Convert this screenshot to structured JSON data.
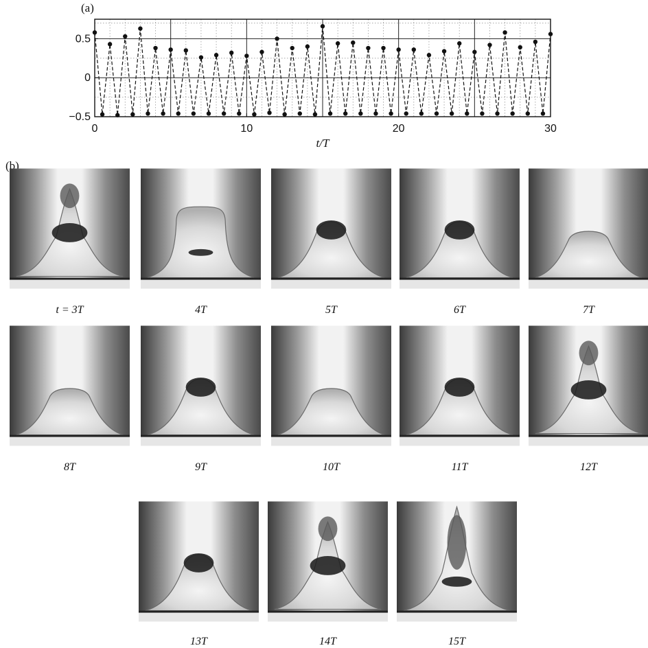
{
  "panel_a": {
    "label": "(a)",
    "chart_data": {
      "type": "line",
      "xlabel": "t/T",
      "ylabel": "",
      "xlim": [
        0,
        30
      ],
      "ylim": [
        -0.5,
        0.75
      ],
      "xticks": [
        0,
        10,
        20,
        30
      ],
      "xtick_labels": [
        "0",
        "10",
        "20",
        "30"
      ],
      "yticks": [
        -0.5,
        0,
        0.5
      ],
      "ytick_labels": [
        "−0.5",
        "0",
        "0.5"
      ],
      "grid": true,
      "line_style": "dashed",
      "marker": "filled-circle",
      "series": [
        {
          "x": [
            0,
            0.5,
            1,
            1.5,
            2,
            2.5,
            3,
            3.5,
            4,
            4.5,
            5,
            5.5,
            6,
            6.5,
            7,
            7.5,
            8,
            8.5,
            9,
            9.5,
            10,
            10.5,
            11,
            11.5,
            12,
            12.5,
            13,
            13.5,
            14,
            14.5,
            15,
            15.5,
            16,
            16.5,
            17,
            17.5,
            18,
            18.5,
            19,
            19.5,
            20,
            20.5,
            21,
            21.5,
            22,
            22.5,
            23,
            23.5,
            24,
            24.5,
            25,
            25.5,
            26,
            26.5,
            27,
            27.5,
            28,
            28.5,
            29,
            29.5,
            30
          ],
          "y": [
            0.58,
            -0.47,
            0.43,
            -0.48,
            0.53,
            -0.47,
            0.63,
            -0.46,
            0.38,
            -0.46,
            0.36,
            -0.46,
            0.35,
            -0.46,
            0.26,
            -0.46,
            0.29,
            -0.46,
            0.32,
            -0.46,
            0.28,
            -0.47,
            0.33,
            -0.45,
            0.5,
            -0.47,
            0.38,
            -0.46,
            0.4,
            -0.47,
            0.66,
            -0.46,
            0.44,
            -0.46,
            0.45,
            -0.46,
            0.38,
            -0.46,
            0.38,
            -0.46,
            0.36,
            -0.46,
            0.36,
            -0.46,
            0.29,
            -0.46,
            0.34,
            -0.46,
            0.44,
            -0.46,
            0.33,
            -0.46,
            0.42,
            -0.46,
            0.58,
            -0.46,
            0.39,
            -0.46,
            0.46,
            -0.46,
            0.56
          ]
        }
      ]
    }
  },
  "panel_b": {
    "label": "(b)",
    "frames": [
      {
        "caption": "t = 3T",
        "shape": "spike"
      },
      {
        "caption": "4T",
        "shape": "cavity"
      },
      {
        "caption": "5T",
        "shape": "dome"
      },
      {
        "caption": "6T",
        "shape": "dome"
      },
      {
        "caption": "7T",
        "shape": "flat"
      },
      {
        "caption": "8T",
        "shape": "flat"
      },
      {
        "caption": "9T",
        "shape": "dome"
      },
      {
        "caption": "10T",
        "shape": "flat"
      },
      {
        "caption": "11T",
        "shape": "dome"
      },
      {
        "caption": "12T",
        "shape": "spike"
      },
      {
        "caption": "13T",
        "shape": "dome"
      },
      {
        "caption": "14T",
        "shape": "spike"
      },
      {
        "caption": "15T",
        "shape": "tall-spike"
      }
    ]
  }
}
